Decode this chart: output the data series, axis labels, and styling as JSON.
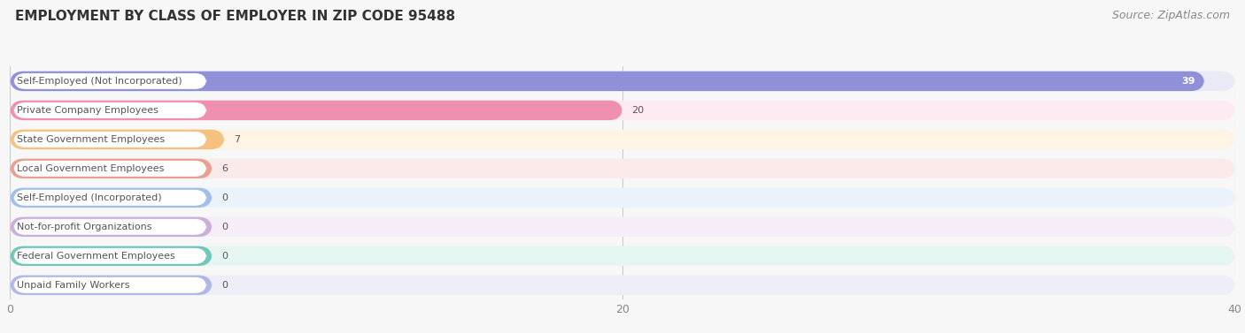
{
  "title": "EMPLOYMENT BY CLASS OF EMPLOYER IN ZIP CODE 95488",
  "source": "Source: ZipAtlas.com",
  "categories": [
    "Self-Employed (Not Incorporated)",
    "Private Company Employees",
    "State Government Employees",
    "Local Government Employees",
    "Self-Employed (Incorporated)",
    "Not-for-profit Organizations",
    "Federal Government Employees",
    "Unpaid Family Workers"
  ],
  "values": [
    39,
    20,
    7,
    6,
    0,
    0,
    0,
    0
  ],
  "bar_colors": [
    "#9090d8",
    "#f090b0",
    "#f5c080",
    "#e8a090",
    "#a0c0e8",
    "#c8b0d8",
    "#70c8b8",
    "#b0b8e8"
  ],
  "bar_bg_colors": [
    "#eaeaf6",
    "#fdeaf2",
    "#fef4e4",
    "#faeaea",
    "#eaf2fc",
    "#f5eef8",
    "#e4f5f2",
    "#eeeef8"
  ],
  "xlim_max": 40,
  "xticks": [
    0,
    20,
    40
  ],
  "background_color": "#f7f7f7",
  "title_fontsize": 11,
  "source_fontsize": 9,
  "label_fontsize": 8,
  "value_fontsize": 8
}
